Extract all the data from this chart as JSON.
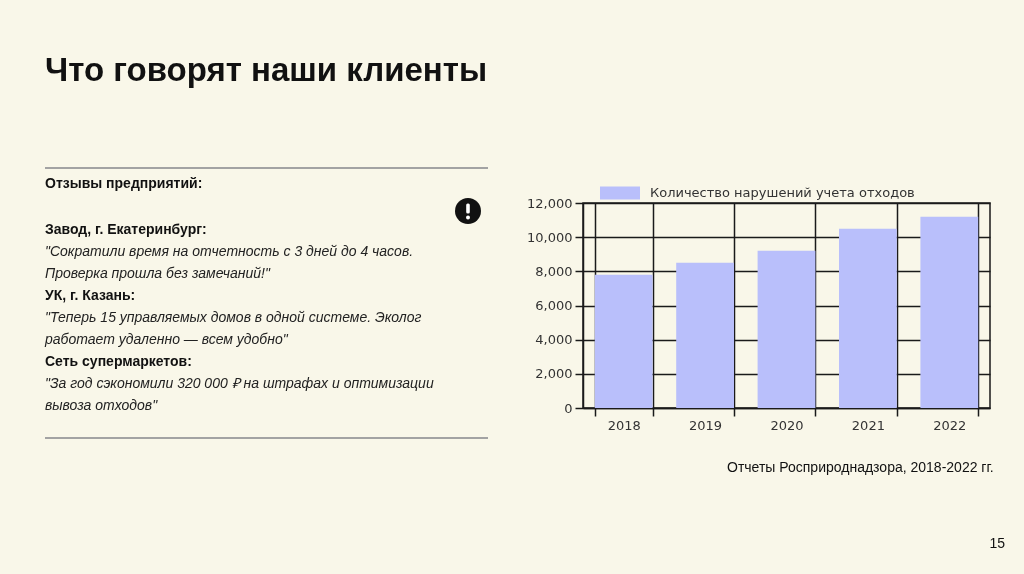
{
  "chart_data": {
    "type": "bar",
    "title": "Что говорят наши клиенты",
    "categories": [
      "2018",
      "2019",
      "2020",
      "2021",
      "2022"
    ],
    "series": [
      {
        "name": "Количество нарушений учета отходов",
        "color": "#b9bffb",
        "values": [
          7800,
          8500,
          9200,
          10500,
          11200
        ]
      }
    ],
    "ylim": [
      0,
      12000
    ],
    "yticks": [
      0,
      {
        "value": 2000,
        "label": "2,000"
      },
      {
        "value": 4000,
        "label": "4,000"
      },
      {
        "value": 6000,
        "label": "6,000"
      },
      {
        "value": 8000,
        "label": "8,000"
      },
      {
        "value": 10000,
        "label": "10,000"
      },
      {
        "value": 12000,
        "label": "12,000"
      }
    ],
    "grid": true,
    "legend": "top",
    "annotations": [
      "Отзывы предприятий:",
      "Завод, г. Екатеринбург:",
      "\"Сократили время на отчетность с 3 дней до 4 часов. Проверка прошла без замечаний!\"",
      "УК, г. Казань:",
      "\"Теперь 15 управляемых домов в одной системе. Эколог работает удаленно — всем удобно\"",
      "Сеть супермаркетов:",
      "\"За год сэкономили 320 000 ₽ на штрафах и оптимизации вывоза отходов\"",
      "Отчеты Росприроднадзора, 2018-2022 гг.",
      "15"
    ]
  }
}
